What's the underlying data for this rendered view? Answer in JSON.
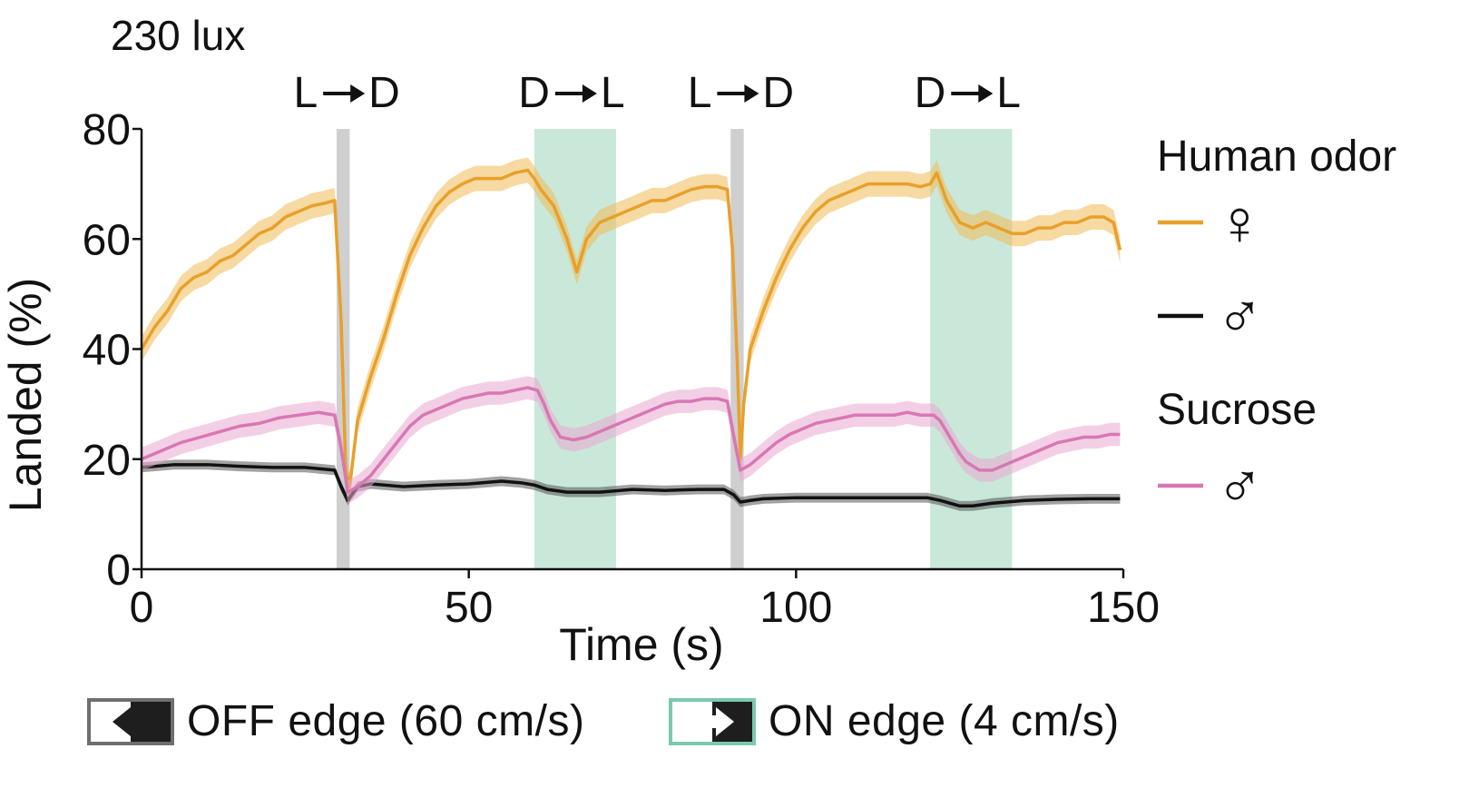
{
  "chart_data": {
    "type": "line",
    "title": "230 lux",
    "xlabel": "Time (s)",
    "ylabel": "Landed (%)",
    "xlim": [
      0,
      150
    ],
    "ylim": [
      0,
      80
    ],
    "xticks": [
      0,
      50,
      100,
      150
    ],
    "yticks": [
      0,
      20,
      40,
      60,
      80
    ],
    "xtick_labels": [
      "0",
      "50",
      "100",
      "150"
    ],
    "ytick_labels": [
      "0",
      "20",
      "40",
      "60",
      "80"
    ],
    "transitions": [
      {
        "label": "L➞D",
        "x_start": 29.8,
        "x_end": 31.8,
        "kind": "light-to-dark",
        "color": "#cfcfcf"
      },
      {
        "label": "D➞L",
        "x_start": 60,
        "x_end": 72.5,
        "kind": "dark-to-light",
        "color": "#c9e8d9"
      },
      {
        "label": "L➞D",
        "x_start": 90,
        "x_end": 92,
        "kind": "light-to-dark",
        "color": "#cfcfcf"
      },
      {
        "label": "D➞L",
        "x_start": 120.5,
        "x_end": 133,
        "kind": "dark-to-light",
        "color": "#c9e8d9"
      }
    ],
    "series": [
      {
        "name": "Human odor ♀",
        "color": "#e8a02a",
        "band_color": "#f0b956",
        "err": 2.3,
        "x": [
          0,
          2,
          4,
          6,
          8,
          10,
          12,
          14,
          16,
          18,
          20,
          22,
          24,
          26,
          28,
          29.5,
          30.5,
          31.2,
          31.8,
          33,
          35,
          37,
          39,
          41,
          43,
          45,
          47,
          49,
          51,
          53,
          55,
          57,
          59,
          60,
          61,
          63,
          65,
          66.5,
          67,
          68,
          70,
          72,
          74,
          76,
          78,
          80,
          82,
          84,
          86,
          88,
          89.5,
          90.3,
          91,
          91.5,
          92,
          93,
          95,
          97,
          99,
          101,
          103,
          105,
          107,
          109,
          111,
          113,
          115,
          117,
          119,
          120.5,
          121.5,
          123,
          125,
          127,
          129,
          131,
          133,
          135,
          137,
          139,
          141,
          143,
          145,
          147,
          148.5,
          149.5
        ],
        "y": [
          40,
          44,
          47,
          51,
          53,
          54,
          56,
          57,
          59,
          61,
          62,
          64,
          65,
          66,
          66.5,
          67,
          45,
          18,
          15,
          27,
          35,
          42,
          50,
          57,
          62,
          66,
          68.5,
          70,
          71,
          71,
          71,
          72,
          72.5,
          71,
          69,
          66,
          60,
          54,
          56,
          60,
          63,
          64,
          65,
          66,
          67,
          67,
          68,
          69,
          69.5,
          69.5,
          69,
          58,
          38,
          20,
          30,
          40,
          47,
          53,
          58,
          62,
          65,
          67,
          68,
          69,
          70,
          70,
          70,
          70,
          69.5,
          70,
          72,
          67,
          63,
          62,
          63,
          62,
          61,
          61,
          62,
          62,
          63,
          63,
          64,
          64,
          63,
          58
        ]
      },
      {
        "name": "Human odor ♂",
        "color": "#111111",
        "band_color": "#555555",
        "err": 0.9,
        "x": [
          0,
          5,
          10,
          15,
          20,
          25,
          29.5,
          30.5,
          31.5,
          33,
          35,
          40,
          45,
          50,
          55,
          58,
          60,
          62,
          65,
          70,
          75,
          80,
          85,
          89,
          90.5,
          91.5,
          93,
          95,
          100,
          105,
          110,
          115,
          120,
          122,
          125,
          127,
          130,
          135,
          140,
          145,
          149.5
        ],
        "y": [
          18.5,
          19,
          19,
          18.7,
          18.5,
          18.5,
          18,
          15,
          12.5,
          15,
          15.5,
          15,
          15.3,
          15.5,
          16,
          15.7,
          15.3,
          14.5,
          14,
          14,
          14.5,
          14.3,
          14.5,
          14.5,
          13.5,
          12.2,
          12.5,
          12.8,
          13,
          13,
          13,
          13,
          13,
          12.5,
          11.5,
          11.5,
          12,
          12.5,
          12.7,
          12.8,
          12.8
        ]
      },
      {
        "name": "Sucrose ♂",
        "color": "#d877b4",
        "band_color": "#e9a7d0",
        "err": 2.1,
        "x": [
          0,
          3,
          6,
          9,
          12,
          15,
          18,
          21,
          24,
          27,
          29.5,
          30.5,
          31.5,
          33,
          35,
          37,
          39,
          41,
          43,
          45,
          47,
          49,
          51,
          53,
          55,
          57,
          59,
          60.5,
          61.5,
          62.5,
          64,
          66,
          68,
          70,
          72,
          74,
          76,
          78,
          80,
          82,
          84,
          86,
          88,
          89.5,
          90.5,
          91.5,
          93,
          95,
          97,
          99,
          101,
          103,
          105,
          107,
          109,
          111,
          113,
          115,
          117,
          119,
          121,
          122,
          123,
          124,
          125,
          126,
          128,
          130,
          132,
          134,
          136,
          138,
          140,
          142,
          144,
          146,
          148,
          149.5
        ],
        "y": [
          20,
          21.5,
          23,
          24,
          25,
          26,
          26.5,
          27.5,
          28,
          28.5,
          28,
          22,
          14,
          15,
          17,
          20,
          23,
          26,
          28,
          29,
          30,
          31,
          31.5,
          32,
          32,
          32.5,
          33,
          32.5,
          30,
          27,
          24,
          23.5,
          24,
          25,
          26,
          27,
          28,
          29,
          30,
          30.5,
          30.5,
          31,
          31,
          30.5,
          24,
          18,
          19,
          21,
          23,
          24.5,
          25.5,
          26.5,
          27,
          27.5,
          28,
          28,
          28,
          28,
          28.5,
          28,
          28,
          27,
          25,
          23,
          21,
          19.5,
          18,
          18,
          19,
          20,
          21,
          22,
          23,
          23.5,
          24,
          24,
          24.5,
          24.5
        ]
      }
    ],
    "legend": {
      "position": "right",
      "groups": [
        {
          "heading": "Human odor",
          "entries": [
            {
              "symbol": "♀",
              "color": "#e8a02a"
            },
            {
              "symbol": "♂",
              "color": "#111111"
            }
          ]
        },
        {
          "heading": "Sucrose",
          "entries": [
            {
              "symbol": "♂",
              "color": "#d877b4"
            }
          ]
        }
      ]
    }
  },
  "edge_key": [
    {
      "label": "OFF edge (60 cm/s)",
      "border_color": "#6f6f6f",
      "arrow": "🡸",
      "dark_side": "right"
    },
    {
      "label": "ON edge (4 cm/s)",
      "border_color": "#7cc9ad",
      "arrow": "🡺",
      "dark_side": "right"
    }
  ]
}
